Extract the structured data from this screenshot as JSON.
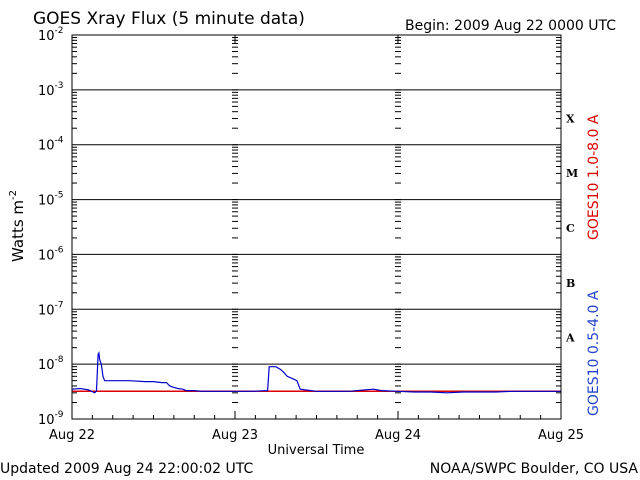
{
  "chart_data": {
    "type": "line",
    "title": "GOES Xray Flux (5 minute data)",
    "begin_label": "Begin:  2009 Aug 22 0000 UTC",
    "xlabel": "Universal Time",
    "ylabel": "Watts m",
    "ylabel_sup": "-2",
    "yscale": "log",
    "ylim": [
      1e-09,
      0.01
    ],
    "xlim_days": [
      0,
      3
    ],
    "x_ticks": [
      {
        "label": "Aug 22",
        "day": 0
      },
      {
        "label": "Aug 23",
        "day": 1
      },
      {
        "label": "Aug 24",
        "day": 2
      },
      {
        "label": "Aug 25",
        "day": 3
      }
    ],
    "y_ticks": [
      {
        "base": "10",
        "exp": "-9",
        "exponent": -9
      },
      {
        "base": "10",
        "exp": "-8",
        "exponent": -8
      },
      {
        "base": "10",
        "exp": "-7",
        "exponent": -7
      },
      {
        "base": "10",
        "exp": "-6",
        "exponent": -6
      },
      {
        "base": "10",
        "exp": "-5",
        "exponent": -5
      },
      {
        "base": "10",
        "exp": "-4",
        "exponent": -4
      },
      {
        "base": "10",
        "exp": "-3",
        "exponent": -3
      },
      {
        "base": "10",
        "exp": "-2",
        "exponent": -2
      }
    ],
    "flare_classes": [
      {
        "label": "A",
        "exponent": -8
      },
      {
        "label": "B",
        "exponent": -7
      },
      {
        "label": "C",
        "exponent": -6
      },
      {
        "label": "M",
        "exponent": -5
      },
      {
        "label": "X",
        "exponent": -4
      }
    ],
    "grid": "horizontal lines at each decade, dashed vertical at day boundaries",
    "series": [
      {
        "name": "GOES10 1.0-8.0 A",
        "color": "#dd0000",
        "x": [
          0,
          0.25,
          0.5,
          0.75,
          1.0,
          1.25,
          1.5,
          1.75,
          2.0,
          2.25,
          2.5,
          2.75,
          3.0
        ],
        "y": [
          3.2e-09,
          3.2e-09,
          3.2e-09,
          3.2e-09,
          3.2e-09,
          3.2e-09,
          3.2e-09,
          3.2e-09,
          3.2e-09,
          3.2e-09,
          3.2e-09,
          3.2e-09,
          3.2e-09
        ]
      },
      {
        "name": "GOES10 0.5-4.0 A",
        "color": "#0000cc",
        "x": [
          0,
          0.05,
          0.1,
          0.14,
          0.15,
          0.16,
          0.165,
          0.17,
          0.18,
          0.19,
          0.2,
          0.25,
          0.3,
          0.35,
          0.45,
          0.5,
          0.55,
          0.58,
          0.6,
          0.62,
          0.65,
          0.68,
          0.7,
          0.75,
          0.8,
          0.9,
          1.0,
          1.1,
          1.2,
          1.21,
          1.22,
          1.25,
          1.28,
          1.3,
          1.32,
          1.35,
          1.38,
          1.4,
          1.5,
          1.6,
          1.7,
          1.8,
          1.85,
          1.9,
          2.0,
          2.1,
          2.2,
          2.3,
          2.4,
          2.5,
          2.6,
          2.7,
          2.8,
          2.9,
          3.0
        ],
        "y": [
          3.5e-09,
          3.6e-09,
          3.4e-09,
          3e-09,
          3.3e-09,
          1.5e-08,
          1.6e-08,
          1.2e-08,
          1e-08,
          6e-09,
          5e-09,
          5e-09,
          5e-09,
          5e-09,
          4.8e-09,
          4.8e-09,
          4.6e-09,
          4.6e-09,
          4e-09,
          3.8e-09,
          3.6e-09,
          3.5e-09,
          3.3e-09,
          3.3e-09,
          3.2e-09,
          3.2e-09,
          3.2e-09,
          3.2e-09,
          3.3e-09,
          9e-09,
          9e-09,
          9e-09,
          8e-09,
          7e-09,
          6e-09,
          5.5e-09,
          5e-09,
          3.5e-09,
          3.2e-09,
          3.2e-09,
          3.2e-09,
          3.4e-09,
          3.5e-09,
          3.3e-09,
          3.2e-09,
          3.1e-09,
          3.1e-09,
          3e-09,
          3.1e-09,
          3.1e-09,
          3.1e-09,
          3.2e-09,
          3.2e-09,
          3.2e-09,
          3.2e-09
        ]
      }
    ]
  },
  "footer": {
    "updated": "Updated 2009 Aug 24 22:00:02 UTC",
    "credit": "NOAA/SWPC Boulder, CO USA"
  }
}
